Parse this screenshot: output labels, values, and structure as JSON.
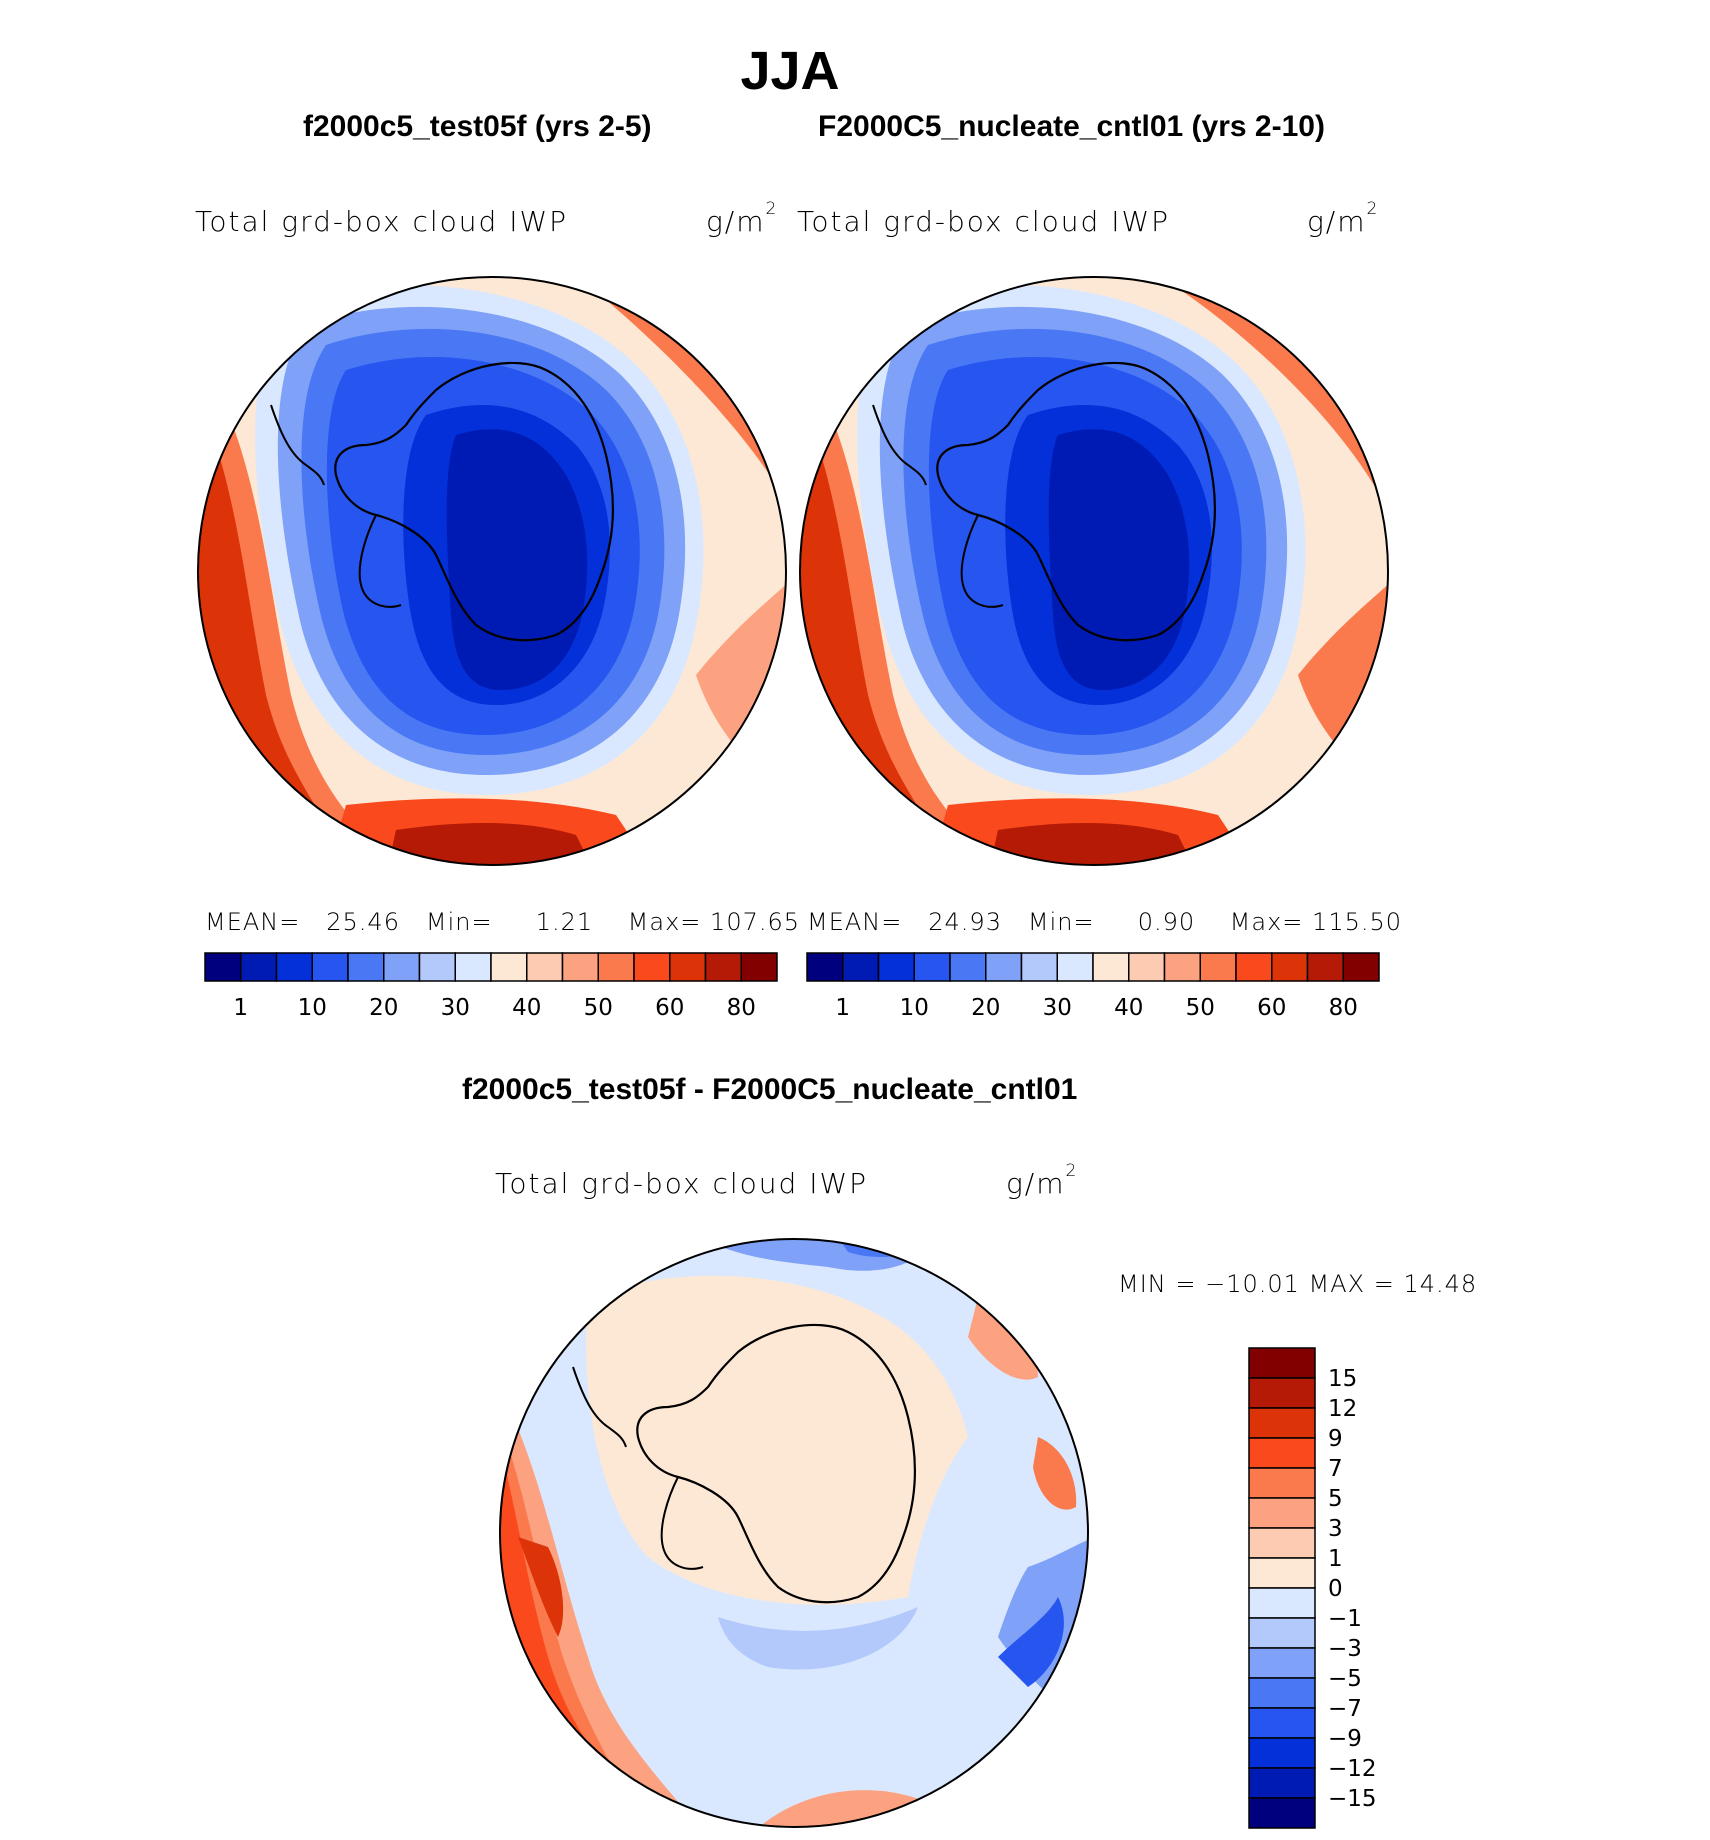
{
  "title": "JJA",
  "panels": [
    {
      "case_title": "f2000c5_test05f (yrs 2-5)",
      "variable": "Total grd-box cloud IWP",
      "units": "g/m",
      "units_exp": "2",
      "stats": {
        "mean_label": "MEAN=",
        "mean": "25.46",
        "min_label": "Min=",
        "min": "1.21",
        "max_label": "Max=",
        "max": "107.65"
      }
    },
    {
      "case_title": "F2000C5_nucleate_cntl01 (yrs 2-10)",
      "variable": "Total grd-box cloud IWP",
      "units": "g/m",
      "units_exp": "2",
      "stats": {
        "mean_label": "MEAN=",
        "mean": "24.93",
        "min_label": "Min=",
        "min": "0.90",
        "max_label": "Max=",
        "max": "115.50"
      }
    }
  ],
  "diff": {
    "case_title": "f2000c5_test05f - F2000C5_nucleate_cntl01",
    "variable": "Total grd-box cloud IWP",
    "units": "g/m",
    "units_exp": "2",
    "minmax": "MIN = −10.01 MAX =   14.48"
  },
  "colorbar_top": {
    "colors": [
      "#00007f",
      "#001bb3",
      "#0330d8",
      "#2655ef",
      "#4a78f5",
      "#7fa1f7",
      "#b3c8fb",
      "#d9e8fe",
      "#fde8d6",
      "#fccbb2",
      "#fca281",
      "#fa7a4e",
      "#fa4a1d",
      "#dc3308",
      "#b41a05",
      "#820000"
    ],
    "tick_labels": [
      "1",
      "10",
      "20",
      "30",
      "40",
      "50",
      "60",
      "80"
    ]
  },
  "colorbar_diff": {
    "colors": [
      "#00007f",
      "#001bb3",
      "#0330d8",
      "#2655ef",
      "#4a78f5",
      "#7fa1f7",
      "#b3c8fb",
      "#d9e8fe",
      "#fde8d6",
      "#fccbb2",
      "#fca281",
      "#fa7a4e",
      "#fa4a1d",
      "#dc3308",
      "#b41a05",
      "#820000"
    ],
    "tick_labels": [
      "15",
      "12",
      "9",
      "7",
      "5",
      "3",
      "1",
      "0",
      "−1",
      "−3",
      "−5",
      "−7",
      "−9",
      "−12",
      "−15"
    ]
  }
}
